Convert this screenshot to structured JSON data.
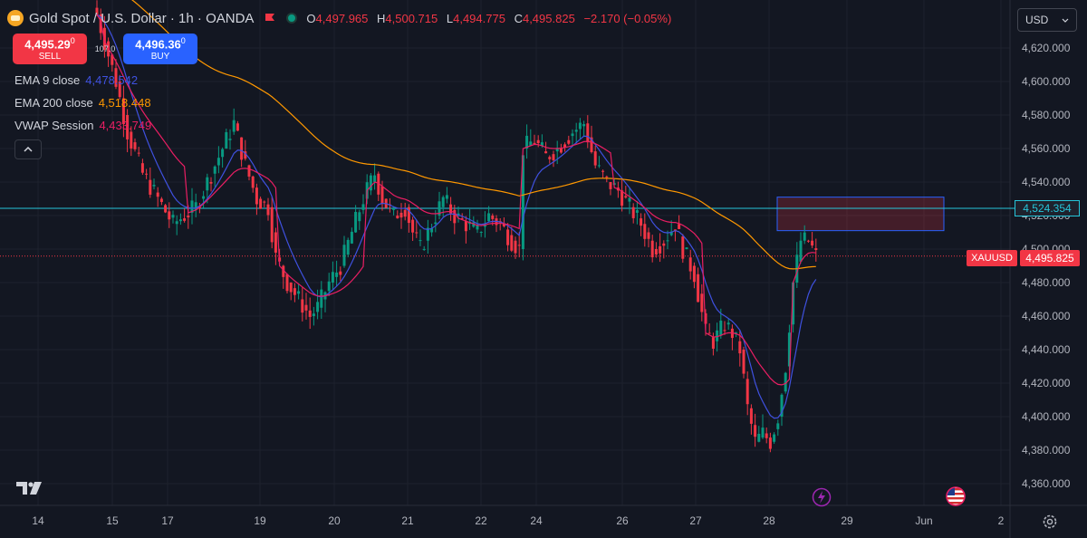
{
  "header": {
    "title": "Gold Spot / U.S. Dollar · 1h · OANDA",
    "ohlc": [
      {
        "label": "O",
        "value": "4,497.965"
      },
      {
        "label": "H",
        "value": "4,500.715"
      },
      {
        "label": "L",
        "value": "4,494.775"
      },
      {
        "label": "C",
        "value": "4,495.825"
      }
    ],
    "change": "−2.170 (−0.05%)"
  },
  "trade": {
    "sell_price_main": "4,495.29",
    "sell_price_sup": "0",
    "sell_label": "SELL",
    "spread": "107.0",
    "buy_price_main": "4,496.36",
    "buy_price_sup": "0",
    "buy_label": "BUY"
  },
  "indicators": [
    {
      "name": "EMA 9 close",
      "value": "4,478.542",
      "color": "#3f51e0"
    },
    {
      "name": "EMA 200 close",
      "value": "4,518.448",
      "color": "#ff9800"
    },
    {
      "name": "VWAP Session",
      "value": "4,433.749",
      "color": "#e91e63"
    }
  ],
  "currency_select": "USD",
  "price_axis": [
    "4,620.000",
    "4,600.000",
    "4,580.000",
    "4,560.000",
    "4,540.000",
    "4,520.000",
    "4,500.000",
    "4,480.000",
    "4,460.000",
    "4,440.000",
    "4,420.000",
    "4,400.000",
    "4,380.000",
    "4,360.000"
  ],
  "time_axis": [
    "14",
    "15",
    "17",
    "19",
    "20",
    "21",
    "22",
    "24",
    "26",
    "27",
    "28",
    "29",
    "Jun",
    "2"
  ],
  "price_line_label": "4,524.354",
  "symbol_tag": "XAUUSD",
  "price_tag": "4,495.825",
  "colors": {
    "up": "#089981",
    "down": "#f23645",
    "background": "#131722",
    "price_line": "#26c6da"
  },
  "icons": [
    "gold-coin-icon",
    "flag-icon",
    "status-dot-icon",
    "chevron-up-icon",
    "chevron-down-icon",
    "tradingview-logo",
    "lightning-icon",
    "us-flag-icon",
    "gear-icon"
  ],
  "chart_data": {
    "type": "candlestick",
    "instrument": "Gold Spot / U.S. Dollar",
    "interval": "1h",
    "ylim": [
      4360,
      4630
    ],
    "x_labels": [
      "14",
      "15",
      "17",
      "19",
      "20",
      "21",
      "22",
      "24",
      "26",
      "27",
      "28",
      "29",
      "Jun",
      "2"
    ],
    "horizontal_line": 4524.354,
    "last_price": 4495.825,
    "zone": {
      "price_top": 4531,
      "price_bottom": 4511
    },
    "anchors": [
      {
        "i": 0,
        "p": 4640
      },
      {
        "i": 5,
        "p": 4600
      },
      {
        "i": 8,
        "p": 4570
      },
      {
        "i": 12,
        "p": 4545
      },
      {
        "i": 16,
        "p": 4530
      },
      {
        "i": 20,
        "p": 4515
      },
      {
        "i": 23,
        "p": 4520
      },
      {
        "i": 26,
        "p": 4525
      },
      {
        "i": 29,
        "p": 4540
      },
      {
        "i": 33,
        "p": 4560
      },
      {
        "i": 36,
        "p": 4575
      },
      {
        "i": 39,
        "p": 4550
      },
      {
        "i": 42,
        "p": 4530
      },
      {
        "i": 45,
        "p": 4525
      },
      {
        "i": 47,
        "p": 4495
      },
      {
        "i": 50,
        "p": 4480
      },
      {
        "i": 53,
        "p": 4470
      },
      {
        "i": 56,
        "p": 4460
      },
      {
        "i": 58,
        "p": 4465
      },
      {
        "i": 61,
        "p": 4480
      },
      {
        "i": 64,
        "p": 4490
      },
      {
        "i": 67,
        "p": 4510
      },
      {
        "i": 70,
        "p": 4530
      },
      {
        "i": 73,
        "p": 4545
      },
      {
        "i": 75,
        "p": 4530
      },
      {
        "i": 78,
        "p": 4520
      },
      {
        "i": 81,
        "p": 4525
      },
      {
        "i": 83,
        "p": 4510
      },
      {
        "i": 85,
        "p": 4500
      },
      {
        "i": 88,
        "p": 4515
      },
      {
        "i": 91,
        "p": 4530
      },
      {
        "i": 94,
        "p": 4520
      },
      {
        "i": 97,
        "p": 4515
      },
      {
        "i": 100,
        "p": 4510
      },
      {
        "i": 103,
        "p": 4520
      },
      {
        "i": 106,
        "p": 4515
      },
      {
        "i": 109,
        "p": 4505
      },
      {
        "i": 111,
        "p": 4500
      },
      {
        "i": 112,
        "p": 4560
      },
      {
        "i": 115,
        "p": 4565
      },
      {
        "i": 118,
        "p": 4555
      },
      {
        "i": 121,
        "p": 4560
      },
      {
        "i": 125,
        "p": 4570
      },
      {
        "i": 128,
        "p": 4575
      },
      {
        "i": 131,
        "p": 4550
      },
      {
        "i": 134,
        "p": 4540
      },
      {
        "i": 137,
        "p": 4535
      },
      {
        "i": 140,
        "p": 4525
      },
      {
        "i": 143,
        "p": 4515
      },
      {
        "i": 146,
        "p": 4500
      },
      {
        "i": 149,
        "p": 4505
      },
      {
        "i": 152,
        "p": 4515
      },
      {
        "i": 154,
        "p": 4500
      },
      {
        "i": 157,
        "p": 4485
      },
      {
        "i": 160,
        "p": 4450
      },
      {
        "i": 162,
        "p": 4445
      },
      {
        "i": 165,
        "p": 4455
      },
      {
        "i": 167,
        "p": 4450
      },
      {
        "i": 169,
        "p": 4440
      },
      {
        "i": 171,
        "p": 4405
      },
      {
        "i": 173,
        "p": 4385
      },
      {
        "i": 175,
        "p": 4390
      },
      {
        "i": 177,
        "p": 4385
      },
      {
        "i": 179,
        "p": 4400
      },
      {
        "i": 181,
        "p": 4430
      },
      {
        "i": 183,
        "p": 4480
      },
      {
        "i": 185,
        "p": 4505
      },
      {
        "i": 187,
        "p": 4505
      },
      {
        "i": 189,
        "p": 4496
      }
    ]
  }
}
